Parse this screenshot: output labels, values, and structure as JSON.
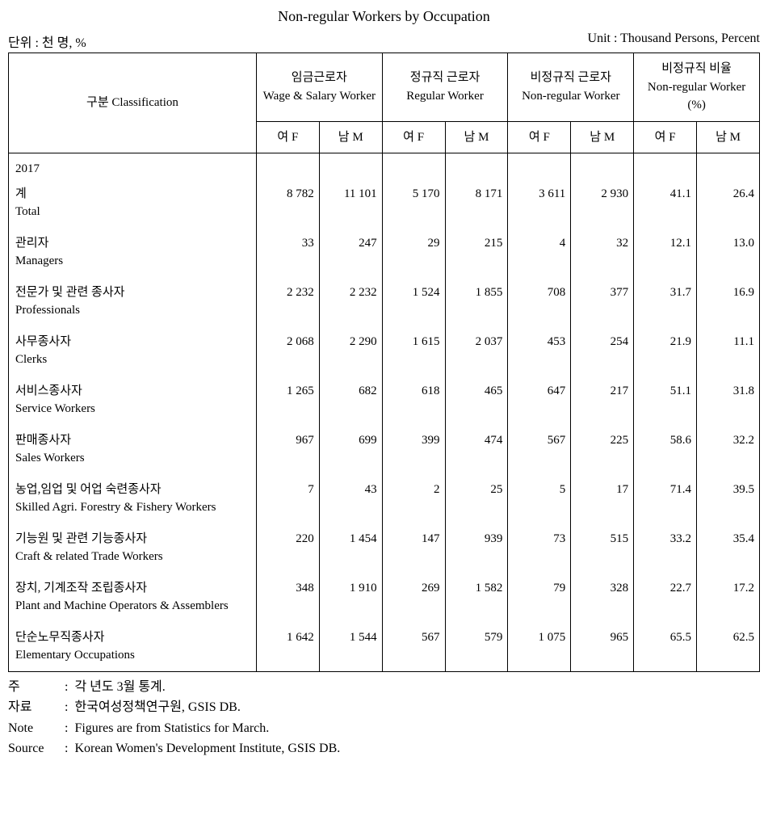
{
  "title": "Non-regular Workers by Occupation",
  "unit_left": "단위 : 천 명, %",
  "unit_right": "Unit : Thousand Persons, Percent",
  "header": {
    "classification": {
      "ko": "구분",
      "en": "Classification"
    },
    "groups": [
      {
        "ko": "임금근로자",
        "en": "Wage & Salary Worker"
      },
      {
        "ko": "정규직 근로자",
        "en": "Regular Worker"
      },
      {
        "ko": "비정규직 근로자",
        "en": "Non-regular Worker"
      },
      {
        "ko": "비정규직 비율",
        "en": "Non-regular Worker (%)"
      }
    ],
    "sub": {
      "f": "여 F",
      "m": "남 M"
    }
  },
  "year": "2017",
  "rows": [
    {
      "ko": "계",
      "en": "Total",
      "v": [
        "8 782",
        "11 101",
        "5 170",
        "8 171",
        "3 611",
        "2 930",
        "41.1",
        "26.4"
      ]
    },
    {
      "ko": "관리자",
      "en": "Managers",
      "v": [
        "33",
        "247",
        "29",
        "215",
        "4",
        "32",
        "12.1",
        "13.0"
      ]
    },
    {
      "ko": "전문가 및 관련 종사자",
      "en": "Professionals",
      "v": [
        "2 232",
        "2 232",
        "1 524",
        "1 855",
        "708",
        "377",
        "31.7",
        "16.9"
      ]
    },
    {
      "ko": "사무종사자",
      "en": "Clerks",
      "v": [
        "2 068",
        "2 290",
        "1 615",
        "2 037",
        "453",
        "254",
        "21.9",
        "11.1"
      ]
    },
    {
      "ko": "서비스종사자",
      "en": "Service Workers",
      "v": [
        "1 265",
        "682",
        "618",
        "465",
        "647",
        "217",
        "51.1",
        "31.8"
      ]
    },
    {
      "ko": "판매종사자",
      "en": "Sales Workers",
      "v": [
        "967",
        "699",
        "399",
        "474",
        "567",
        "225",
        "58.6",
        "32.2"
      ]
    },
    {
      "ko": "농업,임업 및 어업 숙련종사자",
      "en": "Skilled Agri. Forestry & Fishery Workers",
      "v": [
        "7",
        "43",
        "2",
        "25",
        "5",
        "17",
        "71.4",
        "39.5"
      ]
    },
    {
      "ko": "기능원 및 관련 기능종사자",
      "en": "Craft & related Trade Workers",
      "v": [
        "220",
        "1 454",
        "147",
        "939",
        "73",
        "515",
        "33.2",
        "35.4"
      ]
    },
    {
      "ko": "장치, 기계조작 조립종사자",
      "en": "Plant and Machine Operators & Assemblers",
      "v": [
        "348",
        "1 910",
        "269",
        "1 582",
        "79",
        "328",
        "22.7",
        "17.2"
      ]
    },
    {
      "ko": "단순노무직종사자",
      "en": "Elementary Occupations",
      "v": [
        "1 642",
        "1 544",
        "567",
        "579",
        "1 075",
        "965",
        "65.5",
        "62.5"
      ]
    }
  ],
  "footer": [
    {
      "label": "주",
      "colon": ":",
      "text": "각 년도 3월 통계."
    },
    {
      "label": "자료",
      "colon": ":",
      "text": "한국여성정책연구원, GSIS DB."
    },
    {
      "label": "Note",
      "colon": ":",
      "text": "Figures are from Statistics for March."
    },
    {
      "label": "Source",
      "colon": ":",
      "text": "Korean Women's Development Institute, GSIS DB."
    }
  ],
  "colwidths": {
    "label": "33%",
    "data": "8.375%"
  }
}
